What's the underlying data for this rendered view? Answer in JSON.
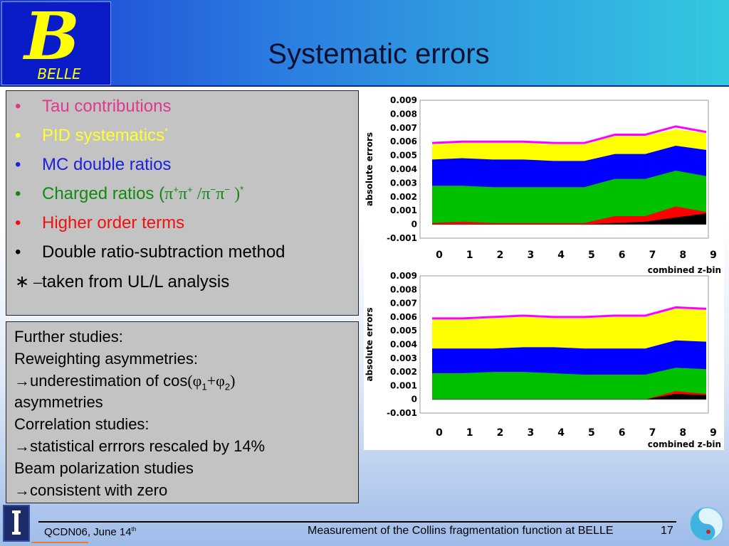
{
  "header": {
    "title": "Systematic errors",
    "logo_text": "BELLE",
    "logo_letter": "B"
  },
  "bullets": [
    {
      "parts": [
        {
          "text": "Tau contributions"
        }
      ],
      "color": "#e0378f",
      "marker": "•"
    },
    {
      "parts": [
        {
          "text": "PID systematics"
        },
        {
          "text": "*",
          "sup": true
        }
      ],
      "color": "#ffff33",
      "marker": "•"
    },
    {
      "parts": [
        {
          "text": "MC double ratios"
        }
      ],
      "color": "#1a22e0",
      "marker": "•"
    },
    {
      "parts": [
        {
          "text": "Charged ratios ("
        },
        {
          "text": "π",
          "sym": true
        },
        {
          "text": "+",
          "sup": true
        },
        {
          "text": "π",
          "sym": true
        },
        {
          "text": "+",
          "sup": true
        },
        {
          "text": " /",
          "sym": true
        },
        {
          "text": "π",
          "sym": true
        },
        {
          "text": "−",
          "sup": true
        },
        {
          "text": "π",
          "sym": true
        },
        {
          "text": "−",
          "sup": true
        },
        {
          "text": " )",
          "sym": true
        },
        {
          "text": "*",
          "sup": true
        }
      ],
      "color": "#108a10",
      "marker": "•"
    },
    {
      "parts": [
        {
          "text": "Higher order terms"
        }
      ],
      "color": "#f01010",
      "marker": "•"
    },
    {
      "parts": [
        {
          "text": "Double ratio-subtraction method"
        }
      ],
      "color": "#000000",
      "marker": "•"
    },
    {
      "parts": [
        {
          "text": "taken from UL/L analysis"
        }
      ],
      "color": "#000000",
      "marker": "∗ –"
    }
  ],
  "studies": [
    {
      "parts": [
        {
          "text": "Further studies:"
        }
      ]
    },
    {
      "parts": [
        {
          "text": "Reweighting  asymmetries:"
        }
      ]
    },
    {
      "parts": [
        {
          "text": "→underestimation of cos"
        },
        {
          "text": "(φ",
          "sym": true
        },
        {
          "text": "1",
          "sub": true
        },
        {
          "text": "+φ",
          "sym": true
        },
        {
          "text": "2",
          "sub": true
        },
        {
          "text": ")",
          "sym": true
        }
      ]
    },
    {
      "parts": [
        {
          "text": "asymmetries"
        }
      ]
    },
    {
      "parts": [
        {
          "text": "Correlation studies:"
        }
      ]
    },
    {
      "parts": [
        {
          "text": "→statistical errrors rescaled by 14%"
        }
      ]
    },
    {
      "parts": [
        {
          "text": "Beam polarization studies"
        }
      ]
    },
    {
      "parts": [
        {
          "text": "→consistent with zero"
        }
      ]
    }
  ],
  "footer": {
    "left": "QCDN06, June 14",
    "left_sup": "th",
    "center": "Measurement of the Collins fragmentation function at BELLE",
    "page": "17"
  },
  "chart_data": [
    {
      "type": "area",
      "xlabel": "combined z-bin",
      "ylabel": "absolute errors",
      "x": [
        0,
        1,
        2,
        3,
        4,
        5,
        6,
        7,
        8,
        9
      ],
      "ylim": [
        -0.001,
        0.009
      ],
      "yticks": [
        "0.009",
        "0.008",
        "0.007",
        "0.006",
        "0.005",
        "0.004",
        "0.003",
        "0.002",
        "0.001",
        "0",
        "-0.001"
      ],
      "series": [
        {
          "color": "#000000",
          "values": [
            0,
            0,
            0,
            0,
            0,
            0,
            0.0001,
            0.0002,
            0.0005,
            0.0008
          ]
        },
        {
          "color": "#ff0000",
          "values": [
            0.0001,
            0.0002,
            0.0001,
            0.0001,
            0.0001,
            0.0001,
            0.0006,
            0.0006,
            0.0013,
            0.0009
          ]
        },
        {
          "color": "#00c000",
          "values": [
            0.0028,
            0.0028,
            0.0027,
            0.0027,
            0.0027,
            0.0027,
            0.0033,
            0.0033,
            0.0039,
            0.0035
          ]
        },
        {
          "color": "#0000ff",
          "values": [
            0.0047,
            0.0048,
            0.0047,
            0.0047,
            0.0046,
            0.0046,
            0.0051,
            0.0051,
            0.0057,
            0.0054
          ]
        },
        {
          "color": "#ffff00",
          "values": [
            0.0058,
            0.0059,
            0.0059,
            0.0059,
            0.0058,
            0.0058,
            0.0064,
            0.0064,
            0.0069,
            0.0066
          ]
        },
        {
          "color": "#ff00ff",
          "values": [
            0.0059,
            0.006,
            0.006,
            0.006,
            0.0059,
            0.0059,
            0.0065,
            0.0065,
            0.0071,
            0.0067
          ]
        }
      ]
    },
    {
      "type": "area",
      "xlabel": "combined z-bin",
      "ylabel": "absolute errors",
      "x": [
        0,
        1,
        2,
        3,
        4,
        5,
        6,
        7,
        8,
        9
      ],
      "ylim": [
        -0.001,
        0.009
      ],
      "yticks": [
        "0.009",
        "0.008",
        "0.007",
        "0.006",
        "0.005",
        "0.004",
        "0.003",
        "0.002",
        "0.001",
        "0",
        "-0.001"
      ],
      "series": [
        {
          "color": "#000000",
          "values": [
            0,
            0,
            0,
            0,
            0,
            0,
            0,
            0,
            0.0004,
            0.0003
          ]
        },
        {
          "color": "#ff0000",
          "values": [
            0,
            0,
            0,
            0,
            0,
            0,
            0,
            0,
            0.0006,
            0.0004
          ]
        },
        {
          "color": "#00c000",
          "values": [
            0.0019,
            0.0019,
            0.002,
            0.002,
            0.0019,
            0.0018,
            0.0018,
            0.0018,
            0.0023,
            0.0022
          ]
        },
        {
          "color": "#0000ff",
          "values": [
            0.0037,
            0.0037,
            0.0037,
            0.0038,
            0.0038,
            0.0037,
            0.0037,
            0.0037,
            0.0043,
            0.0042
          ]
        },
        {
          "color": "#ffff00",
          "values": [
            0.0058,
            0.0058,
            0.0059,
            0.006,
            0.0059,
            0.0059,
            0.006,
            0.006,
            0.0066,
            0.0065
          ]
        },
        {
          "color": "#ff00ff",
          "values": [
            0.0059,
            0.0059,
            0.006,
            0.0061,
            0.006,
            0.006,
            0.0061,
            0.0061,
            0.0067,
            0.0066
          ]
        }
      ]
    }
  ]
}
